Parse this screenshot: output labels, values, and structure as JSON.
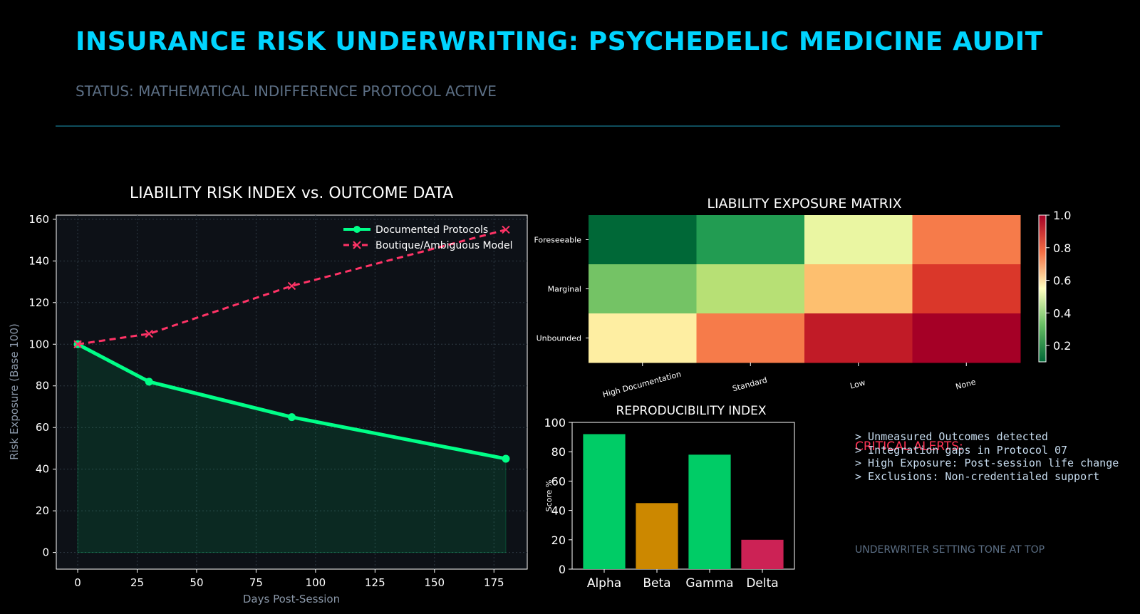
{
  "header": {
    "title": "INSURANCE RISK UNDERWRITING: PSYCHEDELIC MEDICINE AUDIT",
    "status": "STATUS: MATHEMATICAL INDIFFERENCE PROTOCOL ACTIVE"
  },
  "colors": {
    "accent": "#00d4ff",
    "documented": "#00ff88",
    "boutique": "#ff3366",
    "panel_bg": "#0d1117",
    "alert": "#ff3355"
  },
  "alerts": {
    "title": "CRITICAL ALERTS:",
    "items": [
      "> Unmeasured Outcomes detected",
      "> Integration gaps in Protocol 07",
      "> High Exposure: Post-session life change",
      "> Exclusions: Non-credentialed support"
    ]
  },
  "footer_note": "UNDERWRITER SETTING TONE AT TOP",
  "chart_data": [
    {
      "type": "line",
      "title": "LIABILITY RISK INDEX vs. OUTCOME DATA",
      "xlabel": "Days Post-Session",
      "ylabel": "Risk Exposure (Base 100)",
      "xlim": [
        -9,
        189
      ],
      "ylim": [
        -8,
        162
      ],
      "xticks": [
        0,
        25,
        50,
        75,
        100,
        125,
        150,
        175
      ],
      "yticks": [
        0,
        20,
        40,
        60,
        80,
        100,
        120,
        140,
        160
      ],
      "grid": true,
      "legend": "top-right",
      "x": [
        0,
        30,
        90,
        180
      ],
      "series": [
        {
          "name": "Documented Protocols",
          "values": [
            100,
            82,
            65,
            45
          ],
          "color": "#00ff88",
          "style": "solid",
          "marker": "circle",
          "fill": true
        },
        {
          "name": "Boutique/Ambiguous Model",
          "values": [
            100,
            105,
            128,
            155
          ],
          "color": "#ff3366",
          "style": "dashed",
          "marker": "x"
        }
      ]
    },
    {
      "type": "heatmap",
      "title": "LIABILITY EXPOSURE MATRIX",
      "x_categories": [
        "High Documentation",
        "Standard",
        "Low",
        "None"
      ],
      "y_categories": [
        "Foreseeable",
        "Marginal",
        "Unbounded"
      ],
      "values": [
        [
          0.1,
          0.2,
          0.5,
          0.8
        ],
        [
          0.3,
          0.4,
          0.7,
          0.9
        ],
        [
          0.6,
          0.8,
          0.95,
          1.0
        ]
      ],
      "colormap": "RdYlGn_r",
      "colorbar": {
        "min": 0.1,
        "max": 1.0,
        "ticks": [
          0.2,
          0.4,
          0.6,
          0.8,
          1.0
        ]
      }
    },
    {
      "type": "bar",
      "title": "REPRODUCIBILITY INDEX",
      "ylabel": "Score %",
      "categories": [
        "Alpha",
        "Beta",
        "Gamma",
        "Delta"
      ],
      "values": [
        92,
        45,
        78,
        20
      ],
      "colors": [
        "#00cc66",
        "#cc8800",
        "#00cc66",
        "#cc2255"
      ],
      "ylim": [
        0,
        100
      ],
      "yticks": [
        0,
        20,
        40,
        60,
        80,
        100
      ]
    }
  ]
}
